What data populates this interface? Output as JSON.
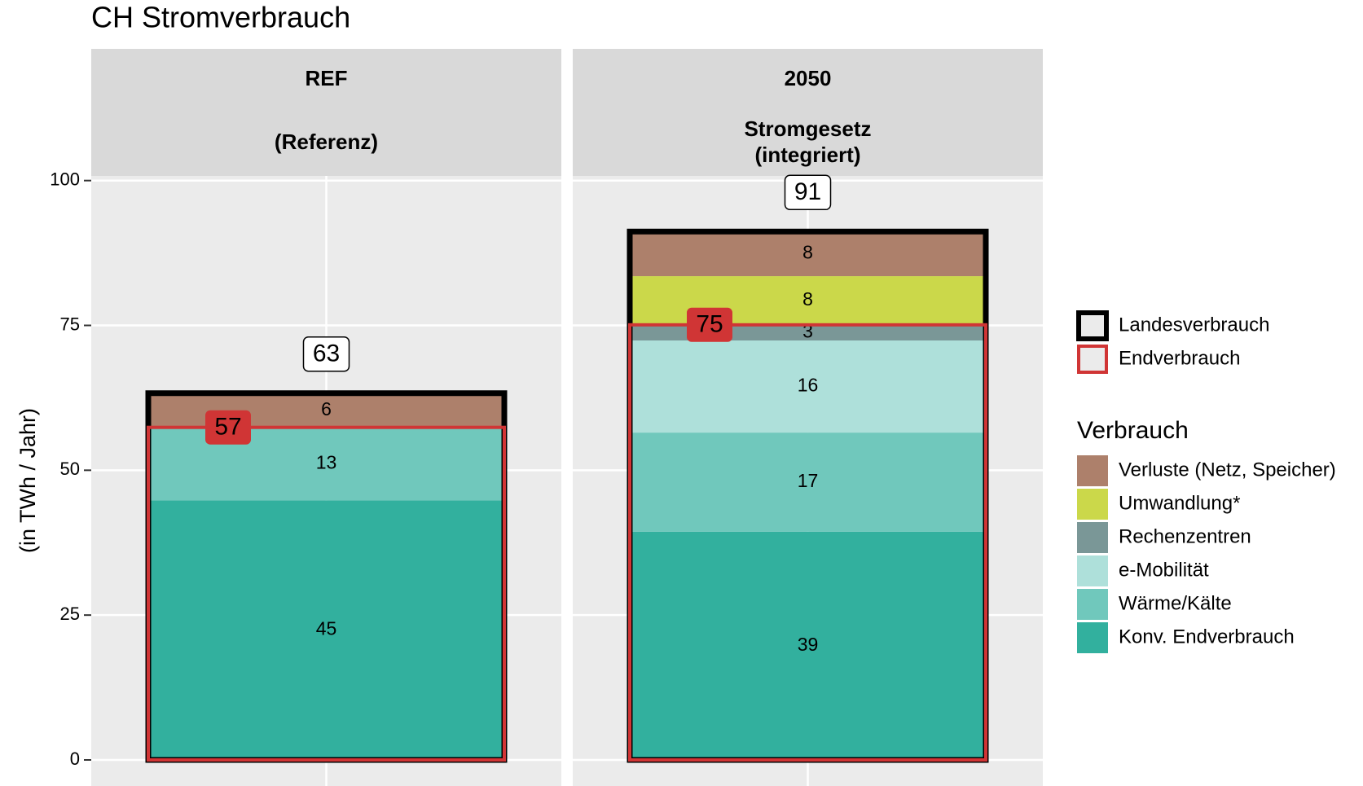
{
  "chart_data": {
    "type": "bar",
    "stacked": true,
    "title": "CH Stromverbrauch",
    "y_label": "(in TWh / Jahr)",
    "facet_labels": [
      [
        "REF",
        "(Referenz)"
      ],
      [
        "2050",
        "Stromgesetz",
        "(integriert)"
      ]
    ],
    "ylim": [
      -4.5,
      100.8
    ],
    "yticks": [
      0,
      25,
      50,
      75,
      100
    ],
    "grid": true,
    "legend_position": "right",
    "legend_title": "Verbrauch",
    "series": [
      {
        "name": "Konv. Endverbrauch",
        "color": "#32b09e",
        "values": [
          44.8,
          39.4
        ],
        "value_labels": [
          "45",
          "39"
        ]
      },
      {
        "name": "Wärme/Kälte",
        "color": "#70c8bc",
        "values": [
          12.6,
          17.1
        ],
        "value_labels": [
          "13",
          "17"
        ]
      },
      {
        "name": "e-Mobilität",
        "color": "#aee0da",
        "values": [
          null,
          15.9
        ],
        "value_labels": [
          null,
          "16"
        ]
      },
      {
        "name": "Rechenzentren",
        "color": "#7a9797",
        "values": [
          null,
          2.7
        ],
        "value_labels": [
          null,
          "3"
        ]
      },
      {
        "name": "Umwandlung*",
        "color": "#cbd84a",
        "values": [
          null,
          8.4
        ],
        "value_labels": [
          null,
          "8"
        ]
      },
      {
        "name": "Verluste (Netz, Speicher)",
        "color": "#ad806b",
        "values": [
          5.9,
          7.7
        ],
        "value_labels": [
          "6",
          "8"
        ]
      }
    ],
    "outlines": [
      {
        "name": "Landesverbrauch",
        "color": "#000000",
        "values": [
          63.3,
          91.2
        ],
        "value_labels": [
          "63",
          "91"
        ]
      },
      {
        "name": "Endverbrauch",
        "color": "#d03535",
        "values": [
          57.4,
          75.1
        ],
        "value_labels": [
          "57",
          "75"
        ]
      }
    ]
  }
}
